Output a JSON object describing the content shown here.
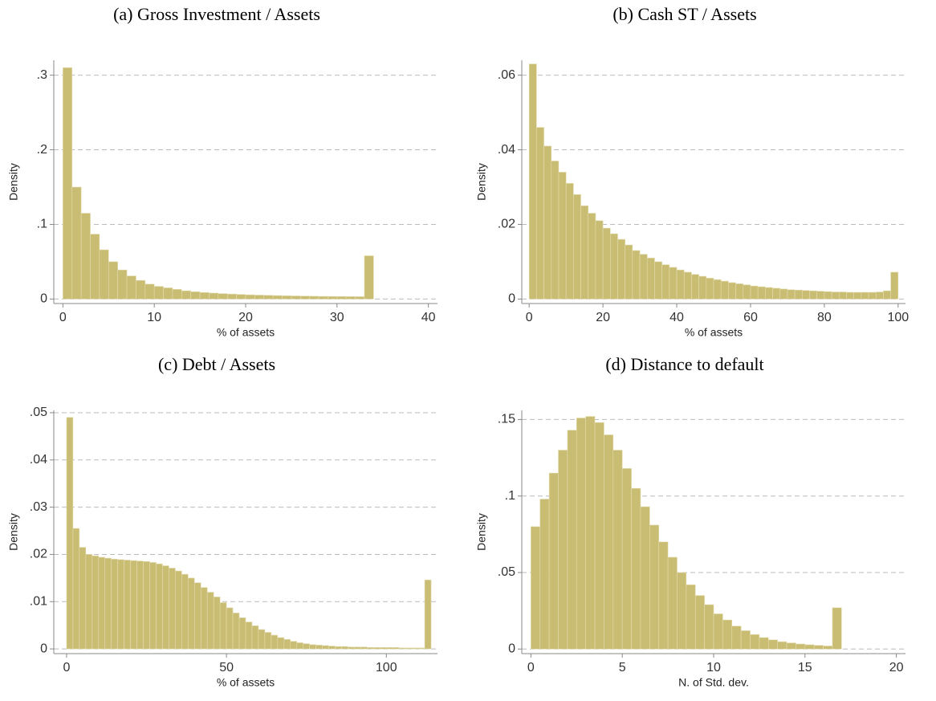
{
  "chart_data": [
    {
      "type": "histogram",
      "title": "(a) Gross Investment / Assets",
      "xlabel": "% of assets",
      "ylabel": "Density",
      "color": "#c9bd74",
      "bins": [
        0,
        1,
        2,
        3,
        4,
        5,
        6,
        7,
        8,
        9,
        10,
        11,
        12,
        13,
        14,
        15,
        16,
        17,
        18,
        19,
        20,
        21,
        22,
        23,
        24,
        25,
        26,
        27,
        28,
        29,
        30,
        31,
        32,
        33,
        34
      ],
      "values": [
        0.31,
        0.15,
        0.115,
        0.087,
        0.066,
        0.05,
        0.039,
        0.031,
        0.025,
        0.02,
        0.017,
        0.015,
        0.013,
        0.011,
        0.0098,
        0.0088,
        0.008,
        0.0073,
        0.0067,
        0.0062,
        0.0057,
        0.0053,
        0.005,
        0.0047,
        0.0044,
        0.0042,
        0.004,
        0.0038,
        0.0036,
        0.0035,
        0.0034,
        0.0033,
        0.0032,
        0.058
      ],
      "xlim": [
        -1,
        41
      ],
      "xticks": [
        0,
        10,
        20,
        30,
        40
      ],
      "ylim": [
        -0.006,
        0.32
      ],
      "yticks": [
        0,
        {
          "value": 0.1,
          "label": ".1"
        },
        {
          "value": 0.2,
          "label": ".2"
        },
        {
          "value": 0.3,
          "label": ".3"
        }
      ],
      "grid": true
    },
    {
      "type": "histogram",
      "title": "(b) Cash ST / Assets",
      "xlabel": "% of assets",
      "ylabel": "Density",
      "color": "#c9bd74",
      "bins": [
        0,
        2,
        4,
        6,
        8,
        10,
        12,
        14,
        16,
        18,
        20,
        22,
        24,
        26,
        28,
        30,
        32,
        34,
        36,
        38,
        40,
        42,
        44,
        46,
        48,
        50,
        52,
        54,
        56,
        58,
        60,
        62,
        64,
        66,
        68,
        70,
        72,
        74,
        76,
        78,
        80,
        82,
        84,
        86,
        88,
        90,
        92,
        94,
        96,
        98,
        100
      ],
      "values": [
        0.063,
        0.046,
        0.041,
        0.037,
        0.034,
        0.031,
        0.028,
        0.025,
        0.023,
        0.021,
        0.019,
        0.0175,
        0.016,
        0.0145,
        0.013,
        0.012,
        0.011,
        0.01,
        0.0092,
        0.0085,
        0.0078,
        0.0072,
        0.0066,
        0.0061,
        0.0056,
        0.0052,
        0.0048,
        0.0044,
        0.0041,
        0.0038,
        0.0035,
        0.0033,
        0.0031,
        0.0029,
        0.0027,
        0.0025,
        0.0024,
        0.0023,
        0.0022,
        0.0021,
        0.002,
        0.0019,
        0.0019,
        0.0018,
        0.0018,
        0.0018,
        0.0018,
        0.0019,
        0.0022,
        0.0072
      ],
      "xlim": [
        -2,
        102
      ],
      "xticks": [
        0,
        20,
        40,
        60,
        80,
        100
      ],
      "ylim": [
        -0.0012,
        0.064
      ],
      "yticks": [
        0,
        {
          "value": 0.02,
          "label": ".02"
        },
        {
          "value": 0.04,
          "label": ".04"
        },
        {
          "value": 0.06,
          "label": ".06"
        }
      ],
      "grid": true
    },
    {
      "type": "histogram",
      "title": "(c) Debt / Assets",
      "xlabel": "% of assets",
      "ylabel": "Density",
      "color": "#c9bd74",
      "bins": [
        0,
        2,
        4,
        6,
        8,
        10,
        12,
        14,
        16,
        18,
        20,
        22,
        24,
        26,
        28,
        30,
        32,
        34,
        36,
        38,
        40,
        42,
        44,
        46,
        48,
        50,
        52,
        54,
        56,
        58,
        60,
        62,
        64,
        66,
        68,
        70,
        72,
        74,
        76,
        78,
        80,
        82,
        84,
        86,
        88,
        90,
        92,
        94,
        96,
        98,
        100,
        102,
        104,
        106,
        108,
        110,
        112,
        114
      ],
      "values": [
        0.049,
        0.0255,
        0.0215,
        0.02,
        0.0197,
        0.0194,
        0.0192,
        0.019,
        0.0189,
        0.0188,
        0.0187,
        0.0186,
        0.0185,
        0.0183,
        0.018,
        0.0176,
        0.0171,
        0.0165,
        0.0158,
        0.015,
        0.014,
        0.013,
        0.012,
        0.011,
        0.0098,
        0.0087,
        0.0076,
        0.0066,
        0.0057,
        0.0049,
        0.0041,
        0.0035,
        0.0029,
        0.0024,
        0.002,
        0.0016,
        0.0013,
        0.0011,
        0.0009,
        0.0008,
        0.0007,
        0.0006,
        0.0005,
        0.0005,
        0.0004,
        0.0004,
        0.0004,
        0.0003,
        0.0003,
        0.0003,
        0.0003,
        0.0003,
        0.0002,
        0.0002,
        0.0002,
        0.0002,
        0.0146
      ],
      "xlim": [
        -4,
        116
      ],
      "xticks": [
        0,
        50,
        100
      ],
      "ylim": [
        -0.001,
        0.0505
      ],
      "yticks": [
        0,
        {
          "value": 0.01,
          "label": ".01"
        },
        {
          "value": 0.02,
          "label": ".02"
        },
        {
          "value": 0.03,
          "label": ".03"
        },
        {
          "value": 0.04,
          "label": ".04"
        },
        {
          "value": 0.05,
          "label": ".05"
        }
      ],
      "grid": true
    },
    {
      "type": "histogram",
      "title": "(d) Distance to default",
      "xlabel": "N. of Std. dev.",
      "ylabel": "Density",
      "color": "#c9bd74",
      "bins": [
        0,
        0.5,
        1,
        1.5,
        2,
        2.5,
        3,
        3.5,
        4,
        4.5,
        5,
        5.5,
        6,
        6.5,
        7,
        7.5,
        8,
        8.5,
        9,
        9.5,
        10,
        10.5,
        11,
        11.5,
        12,
        12.5,
        13,
        13.5,
        14,
        14.5,
        15,
        15.5,
        16,
        16.5,
        17
      ],
      "values": [
        0.08,
        0.098,
        0.115,
        0.13,
        0.143,
        0.151,
        0.152,
        0.148,
        0.14,
        0.13,
        0.118,
        0.105,
        0.093,
        0.081,
        0.07,
        0.06,
        0.05,
        0.042,
        0.035,
        0.029,
        0.023,
        0.019,
        0.015,
        0.012,
        0.0095,
        0.0075,
        0.006,
        0.0048,
        0.004,
        0.0033,
        0.0028,
        0.0024,
        0.002,
        0.027
      ],
      "xlim": [
        -0.5,
        20.5
      ],
      "xticks": [
        0,
        5,
        10,
        15,
        20
      ],
      "ylim": [
        -0.003,
        0.156
      ],
      "yticks": [
        0,
        {
          "value": 0.05,
          "label": ".05"
        },
        {
          "value": 0.1,
          "label": ".1"
        },
        {
          "value": 0.15,
          "label": ".15"
        }
      ],
      "grid": true
    }
  ]
}
